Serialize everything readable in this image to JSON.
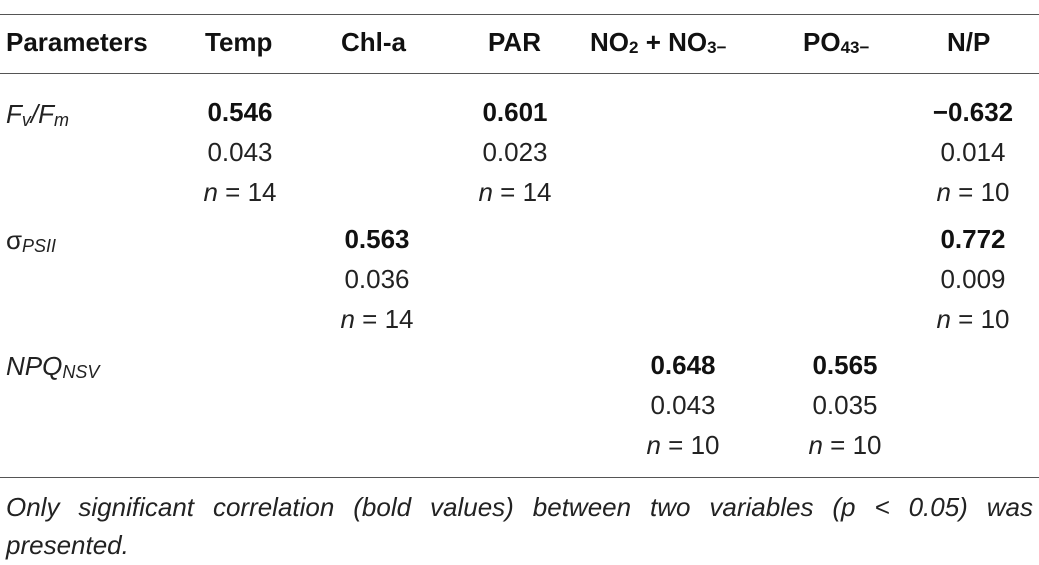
{
  "headers": {
    "parameters": "Parameters",
    "temp": "Temp",
    "chl": "Chl-a",
    "par": "PAR",
    "no_pre": "NO",
    "no_sub1": "2",
    "no_mid": " + NO",
    "no_sub2": "3−",
    "po_pre": "PO",
    "po_sub": "43−",
    "np": "N/P"
  },
  "rows": [
    {
      "label_main": "F",
      "label_sub": "v",
      "label_mid": "/F",
      "label_sub2": "m",
      "cells": {
        "temp": {
          "value": "0.546",
          "p": "0.043",
          "n_var": "n",
          "n_rest": " = 14"
        },
        "par": {
          "value": "0.601",
          "p": "0.023",
          "n_var": "n",
          "n_rest": " = 14"
        },
        "np": {
          "value": "−0.632",
          "p": "0.014",
          "n_var": "n",
          "n_rest": " = 10"
        }
      }
    },
    {
      "label_main": "σ",
      "label_sub": "PSII",
      "cells": {
        "chl": {
          "value": "0.563",
          "p": "0.036",
          "n_var": "n",
          "n_rest": " = 14"
        },
        "np": {
          "value": "0.772",
          "p": "0.009",
          "n_var": "n",
          "n_rest": " = 10"
        }
      }
    },
    {
      "label_main": "NPQ",
      "label_sub": "NSV",
      "cells": {
        "no": {
          "value": "0.648",
          "p": "0.043",
          "n_var": "n",
          "n_rest": " = 10"
        },
        "po": {
          "value": "0.565",
          "p": "0.035",
          "n_var": "n",
          "n_rest": " = 10"
        }
      }
    }
  ],
  "footnote": "Only significant correlation (bold values) between two variables (p < 0.05) was presented."
}
